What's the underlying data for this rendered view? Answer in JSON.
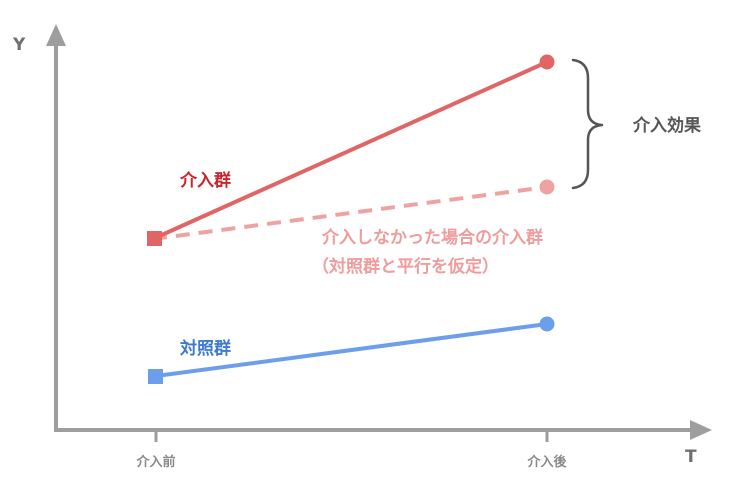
{
  "axes": {
    "y_label": "Y",
    "x_label": "T",
    "tick_before": "介入前",
    "tick_after": "介入後"
  },
  "labels": {
    "treatment": "介入群",
    "control": "対照群",
    "counterfactual_line1": "介入しなかった場合の介入群",
    "counterfactual_line2": "（対照群と平行を仮定）",
    "effect": "介入効果"
  },
  "colors": {
    "treatment": "#e06666",
    "counterfactual": "#eea3a3",
    "control": "#6d9eeb",
    "axis": "#9e9e9e",
    "brace": "#555555"
  }
}
